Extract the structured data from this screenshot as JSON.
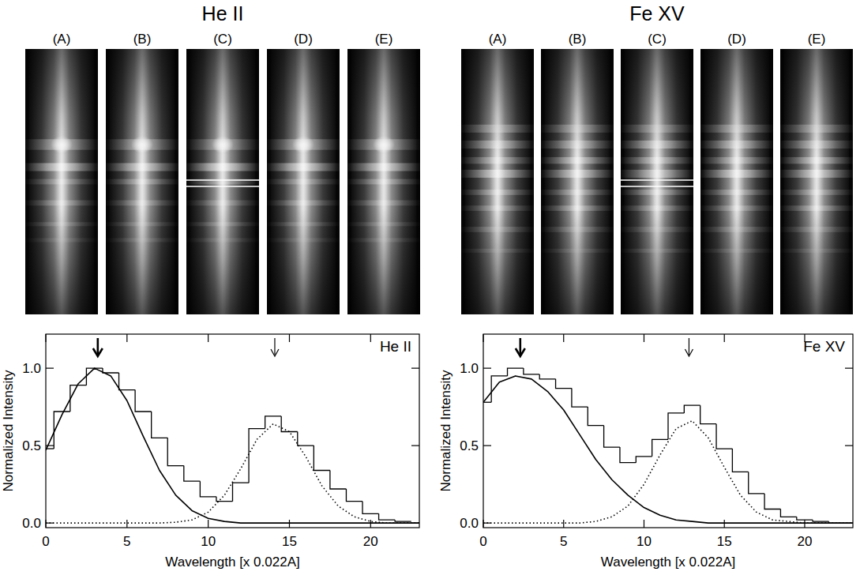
{
  "image_panels": [
    {
      "title": "He II",
      "labels": [
        "(A)",
        "(B)",
        "(C)",
        "(D)",
        "(E)"
      ]
    },
    {
      "title": "Fe XV",
      "labels": [
        "(A)",
        "(B)",
        "(C)",
        "(D)",
        "(E)"
      ]
    }
  ],
  "chart_data": [
    {
      "type": "line",
      "xlabel": "Wavelength [x 0.022A]",
      "ylabel": "Normalized Intensity",
      "annotations": [
        {
          "text": "He II"
        }
      ],
      "arrows": [
        3.2,
        14.1
      ],
      "xlim": [
        0,
        23
      ],
      "ylim": [
        -0.03,
        1.22
      ],
      "xticks": [
        0,
        5,
        10,
        15,
        20
      ],
      "yticks": [
        {
          "value": 0,
          "label": "0.0"
        },
        {
          "value": 0.5,
          "label": "0.5"
        },
        {
          "value": 1,
          "label": "1.0"
        }
      ],
      "series": [
        {
          "type": "step",
          "color": "#000000",
          "line_style": "solid",
          "x": [
            0,
            1,
            2,
            3,
            4,
            5,
            6,
            7,
            8,
            9,
            10,
            11,
            12,
            13,
            14,
            15,
            16,
            17,
            18,
            19,
            20,
            21,
            22
          ],
          "values": [
            0.48,
            0.72,
            0.89,
            1.0,
            0.97,
            0.86,
            0.72,
            0.55,
            0.37,
            0.27,
            0.17,
            0.14,
            0.26,
            0.61,
            0.69,
            0.59,
            0.5,
            0.34,
            0.22,
            0.14,
            0.06,
            0.02,
            0.01
          ]
        },
        {
          "type": "line",
          "color": "#000000",
          "line_style": "solid",
          "x": [
            0,
            1,
            2,
            3,
            4,
            5,
            6,
            7,
            8,
            9,
            10,
            11,
            12,
            13,
            14,
            15,
            16,
            17,
            18,
            19,
            20,
            21,
            22,
            23
          ],
          "values": [
            0.47,
            0.7,
            0.9,
            1.0,
            0.95,
            0.79,
            0.56,
            0.34,
            0.18,
            0.08,
            0.03,
            0.01,
            0.0,
            0.0,
            0.0,
            0.0,
            0.0,
            0.0,
            0.0,
            0.0,
            0.0,
            0.0,
            0.0,
            0.0
          ]
        },
        {
          "type": "line",
          "color": "#000000",
          "line_style": "dotted",
          "x": [
            0,
            1,
            2,
            3,
            4,
            5,
            6,
            7,
            8,
            9,
            10,
            11,
            12,
            13,
            14,
            15,
            16,
            17,
            18,
            19,
            20,
            21,
            22,
            23
          ],
          "values": [
            0.0,
            0.0,
            0.0,
            0.0,
            0.0,
            0.0,
            0.0,
            0.0,
            0.005,
            0.02,
            0.07,
            0.18,
            0.35,
            0.54,
            0.64,
            0.59,
            0.43,
            0.24,
            0.11,
            0.04,
            0.01,
            0.0,
            0.0,
            0.0
          ]
        }
      ]
    },
    {
      "type": "line",
      "xlabel": "Wavelength [x 0.022A]",
      "ylabel": "Normalized Intensity",
      "annotations": [
        {
          "text": "Fe XV"
        }
      ],
      "arrows": [
        2.3,
        12.8
      ],
      "xlim": [
        0,
        23
      ],
      "ylim": [
        -0.03,
        1.22
      ],
      "xticks": [
        0,
        5,
        10,
        15,
        20
      ],
      "yticks": [
        {
          "value": 0,
          "label": "0.0"
        },
        {
          "value": 0.5,
          "label": "0.5"
        },
        {
          "value": 1,
          "label": "1.0"
        }
      ],
      "series": [
        {
          "type": "step",
          "color": "#000000",
          "line_style": "solid",
          "x": [
            0,
            1,
            2,
            3,
            4,
            5,
            6,
            7,
            8,
            9,
            10,
            11,
            12,
            13,
            14,
            15,
            16,
            17,
            18,
            19,
            20,
            21,
            22
          ],
          "values": [
            0.78,
            0.95,
            1.0,
            0.96,
            0.93,
            0.87,
            0.75,
            0.63,
            0.49,
            0.39,
            0.43,
            0.54,
            0.71,
            0.76,
            0.64,
            0.48,
            0.33,
            0.19,
            0.09,
            0.04,
            0.02,
            0.01,
            0.0
          ]
        },
        {
          "type": "line",
          "color": "#000000",
          "line_style": "solid",
          "x": [
            0,
            1,
            2,
            3,
            4,
            5,
            6,
            7,
            8,
            9,
            10,
            11,
            12,
            13,
            14,
            15,
            16,
            17,
            18,
            19,
            20,
            21,
            22,
            23
          ],
          "values": [
            0.78,
            0.91,
            0.95,
            0.93,
            0.85,
            0.73,
            0.57,
            0.41,
            0.28,
            0.18,
            0.1,
            0.05,
            0.02,
            0.01,
            0.0,
            0.0,
            0.0,
            0.0,
            0.0,
            0.0,
            0.0,
            0.0,
            0.0,
            0.0
          ]
        },
        {
          "type": "line",
          "color": "#000000",
          "line_style": "dotted",
          "x": [
            0,
            1,
            2,
            3,
            4,
            5,
            6,
            7,
            8,
            9,
            10,
            11,
            12,
            13,
            14,
            15,
            16,
            17,
            18,
            19,
            20,
            21,
            22,
            23
          ],
          "values": [
            0.0,
            0.0,
            0.0,
            0.0,
            0.0,
            0.0,
            0.0,
            0.01,
            0.04,
            0.11,
            0.25,
            0.44,
            0.61,
            0.66,
            0.55,
            0.36,
            0.18,
            0.07,
            0.02,
            0.01,
            0.0,
            0.0,
            0.0,
            0.0
          ]
        }
      ]
    }
  ]
}
